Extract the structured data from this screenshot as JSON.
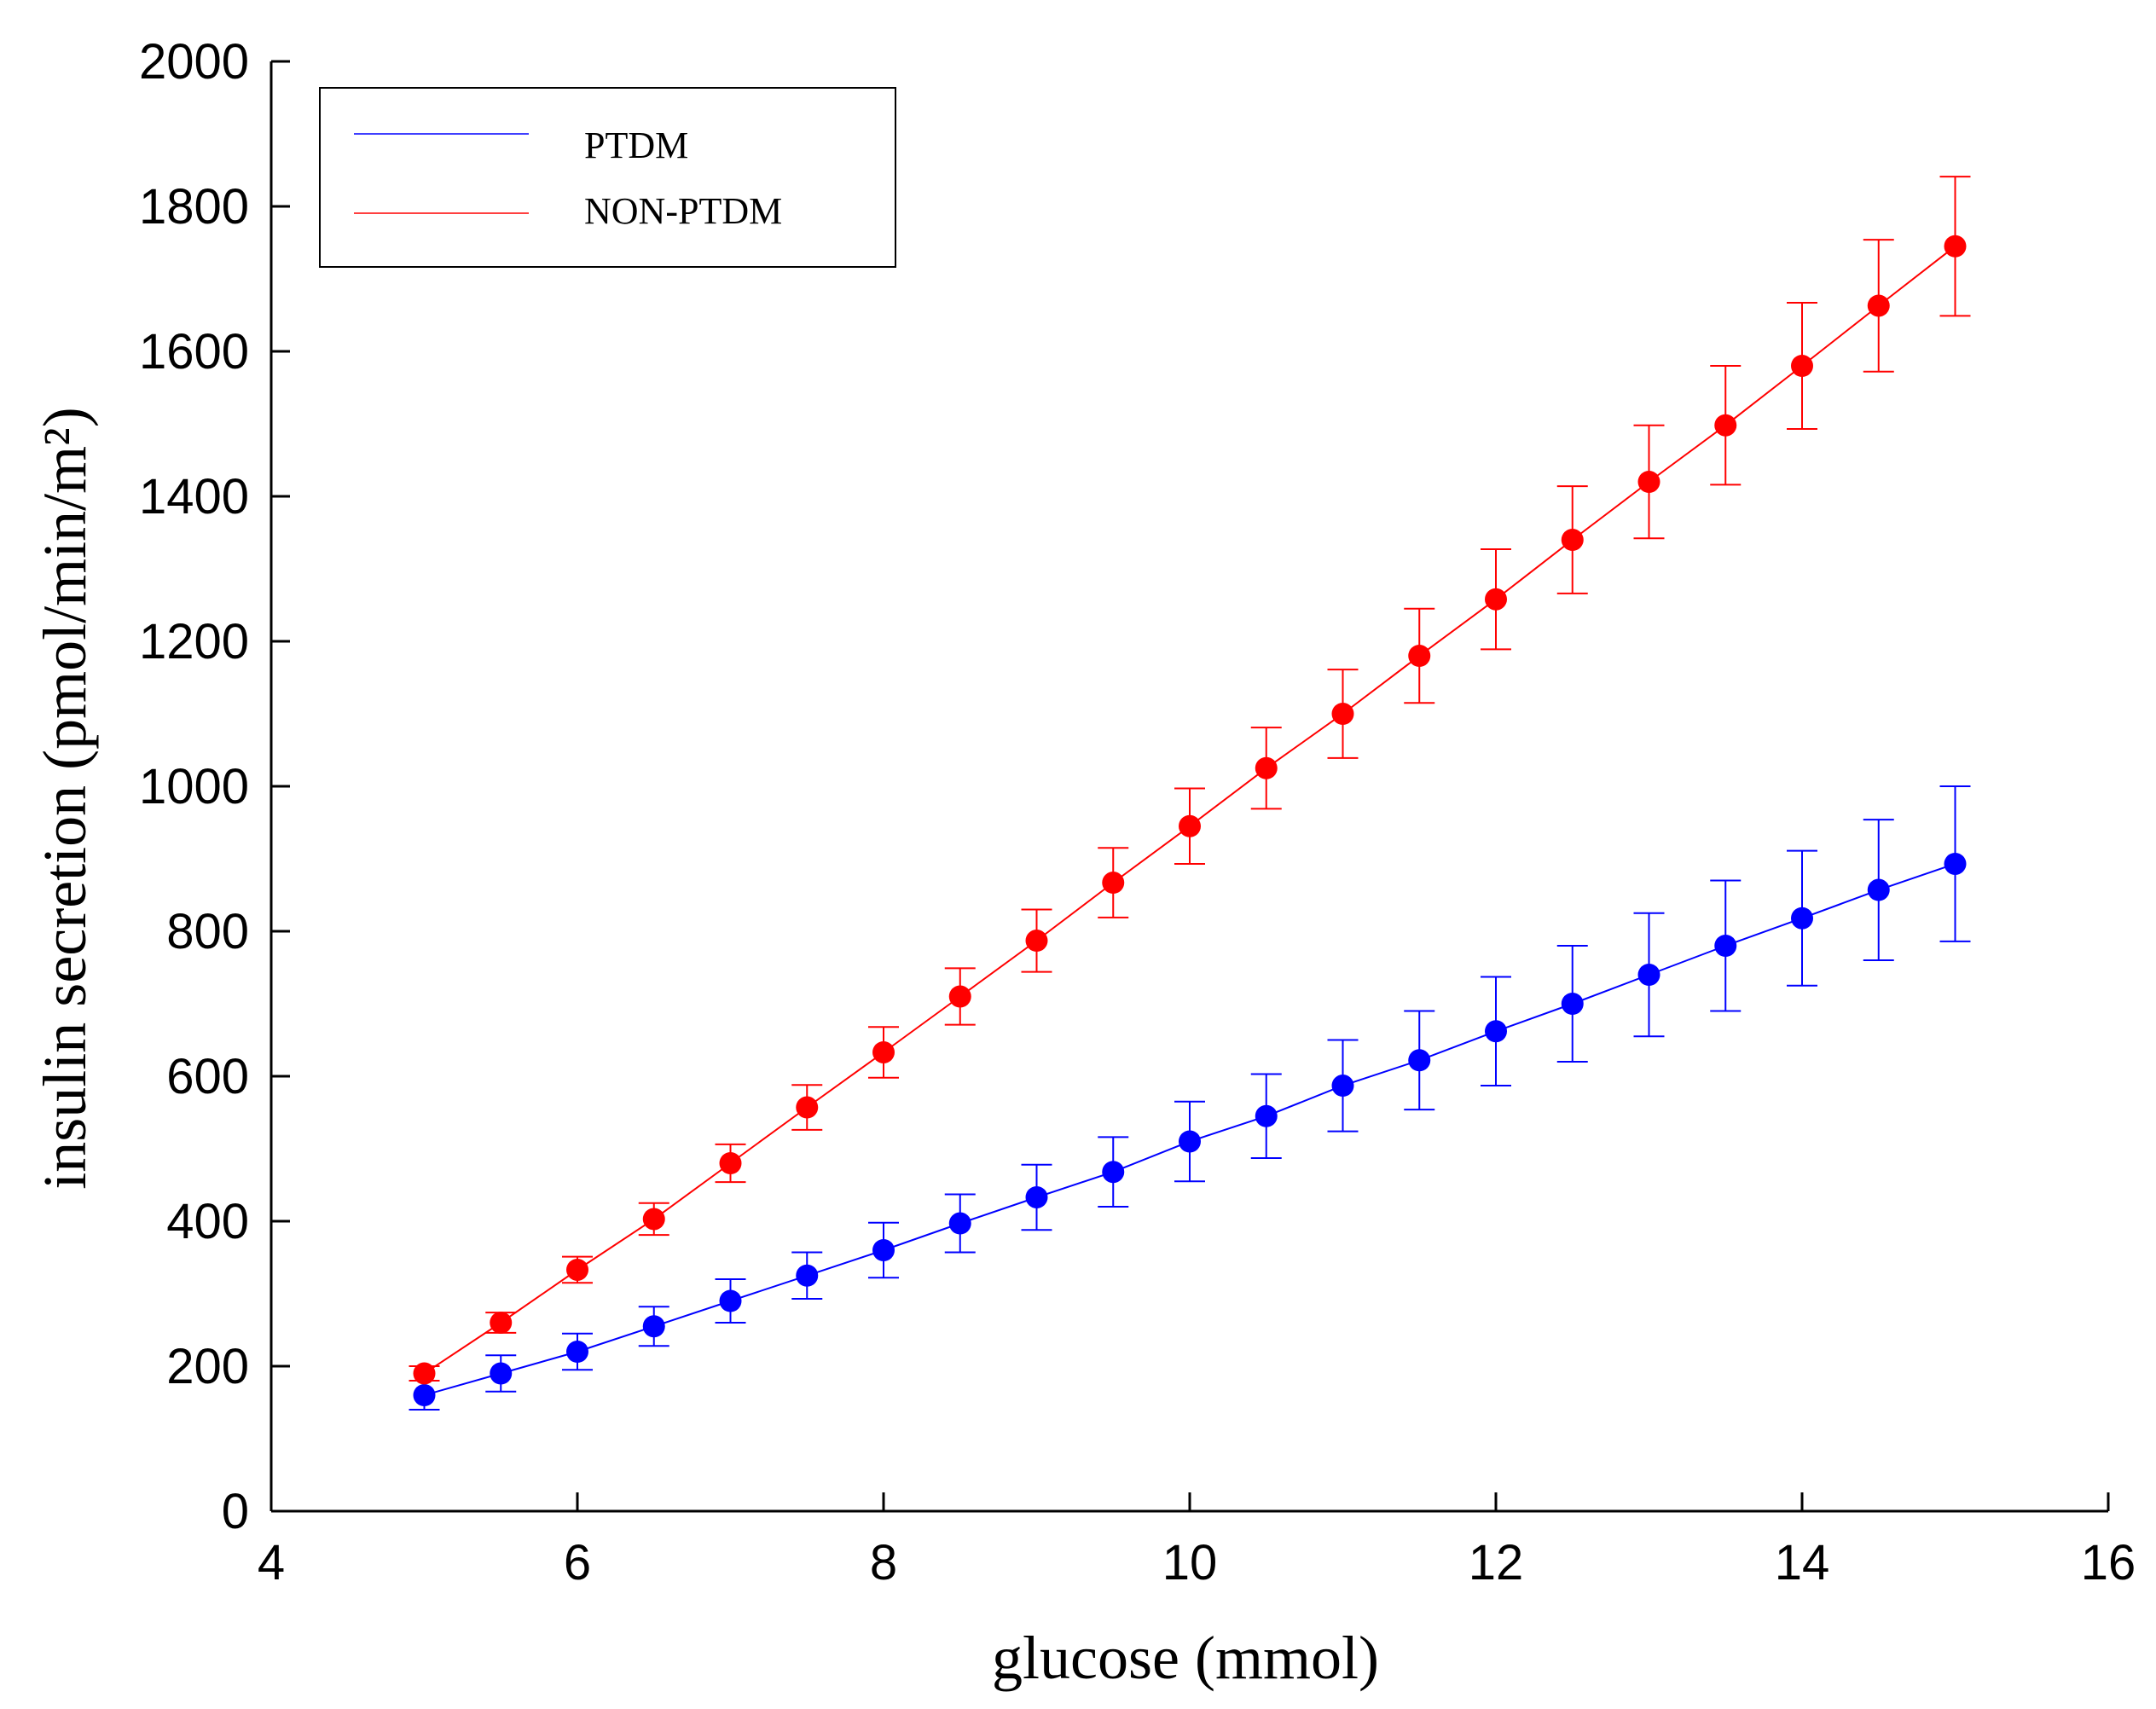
{
  "chart_data": {
    "type": "line",
    "title": "",
    "xlabel": "glucose (mmol)",
    "ylabel": "insulin secretion (pmol/min/m²)",
    "xlim": [
      4,
      16
    ],
    "ylim": [
      0,
      2000
    ],
    "xticks": [
      4,
      6,
      8,
      10,
      12,
      14,
      16
    ],
    "yticks": [
      0,
      200,
      400,
      600,
      800,
      1000,
      1200,
      1400,
      1600,
      1800,
      2000
    ],
    "grid": false,
    "legend_position": "top-left",
    "x": [
      5,
      5.5,
      6,
      6.5,
      7,
      7.5,
      8,
      8.5,
      9,
      9.5,
      10,
      10.5,
      11,
      11.5,
      12,
      12.5,
      13,
      13.5,
      14,
      14.5,
      15
    ],
    "series": [
      {
        "name": "PTDM",
        "color": "#0000ff",
        "values": [
          160,
          190,
          220,
          255,
          290,
          325,
          360,
          397,
          433,
          468,
          510,
          545,
          587,
          622,
          662,
          700,
          740,
          780,
          818,
          857,
          893
        ],
        "errors": [
          20,
          25,
          25,
          27,
          30,
          32,
          38,
          40,
          45,
          48,
          55,
          58,
          63,
          68,
          75,
          80,
          85,
          90,
          93,
          97,
          107
        ]
      },
      {
        "name": "NON-PTDM",
        "color": "#ff0000",
        "values": [
          190,
          260,
          333,
          403,
          480,
          557,
          633,
          710,
          787,
          867,
          945,
          1025,
          1100,
          1180,
          1258,
          1340,
          1420,
          1498,
          1580,
          1663,
          1745
        ]
      }
    ]
  }
}
